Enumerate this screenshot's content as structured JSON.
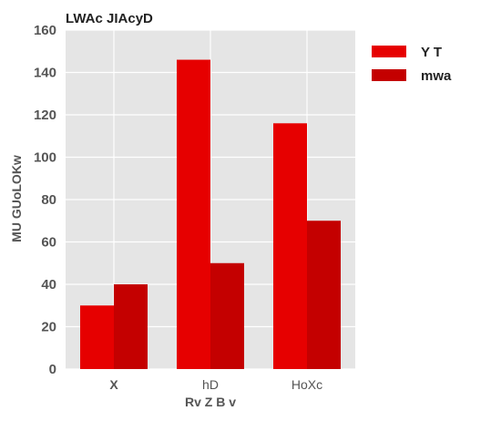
{
  "chart_data": {
    "type": "bar",
    "title": "LWAc JIAcyD",
    "xlabel": "Rv Z  B v",
    "ylabel": "MU   GUoLOKw",
    "categories": [
      "X",
      "hD",
      "HoXc"
    ],
    "category_bold": [
      true,
      false,
      false
    ],
    "ylim": [
      0,
      160
    ],
    "yticks": [
      0,
      20,
      40,
      60,
      80,
      100,
      120,
      140,
      160
    ],
    "grid": true,
    "legend_position": "top-right-outside",
    "series": [
      {
        "name": "Y T",
        "values": [
          30,
          146,
          116
        ],
        "color": "#e60000"
      },
      {
        "name": "mwa",
        "values": [
          40,
          50,
          70
        ],
        "color": "#c40000"
      }
    ]
  },
  "colors": {
    "plot_background": "#e5e5e5",
    "grid": "#ffffff"
  }
}
